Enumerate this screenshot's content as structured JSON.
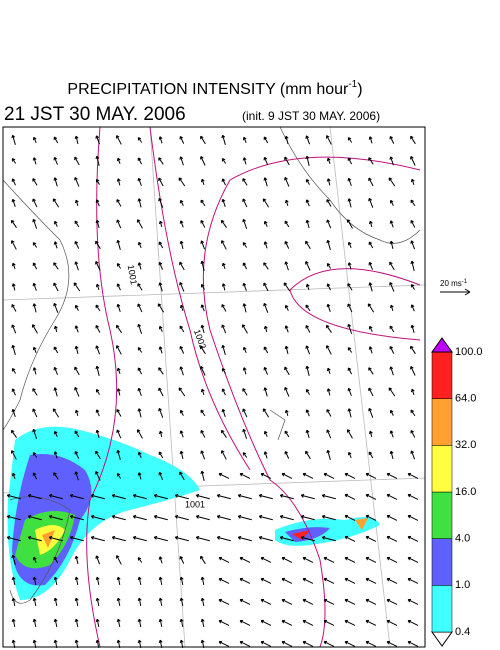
{
  "header": {
    "title": "PRECIPITATION INTENSITY (mm hour",
    "title_sup": "-1",
    "title_end": ")",
    "time": "21 JST 30 MAY. 2006",
    "init": "(init. 9 JST 30 MAY. 2006)"
  },
  "vector_legend": {
    "label": "20 ms",
    "sup": "-1"
  },
  "isobars": [
    {
      "label": "1001"
    },
    {
      "label": "1002"
    },
    {
      "label": "1001"
    }
  ],
  "colorbar": {
    "labels": [
      "0.4",
      "1.0",
      "4.0",
      "16.0",
      "32.0",
      "64.0",
      "100.0"
    ],
    "colors": [
      "#ffffff",
      "#40ffff",
      "#6060ff",
      "#40e040",
      "#ffff40",
      "#ffa030",
      "#ff2020",
      "#c000ff"
    ]
  }
}
